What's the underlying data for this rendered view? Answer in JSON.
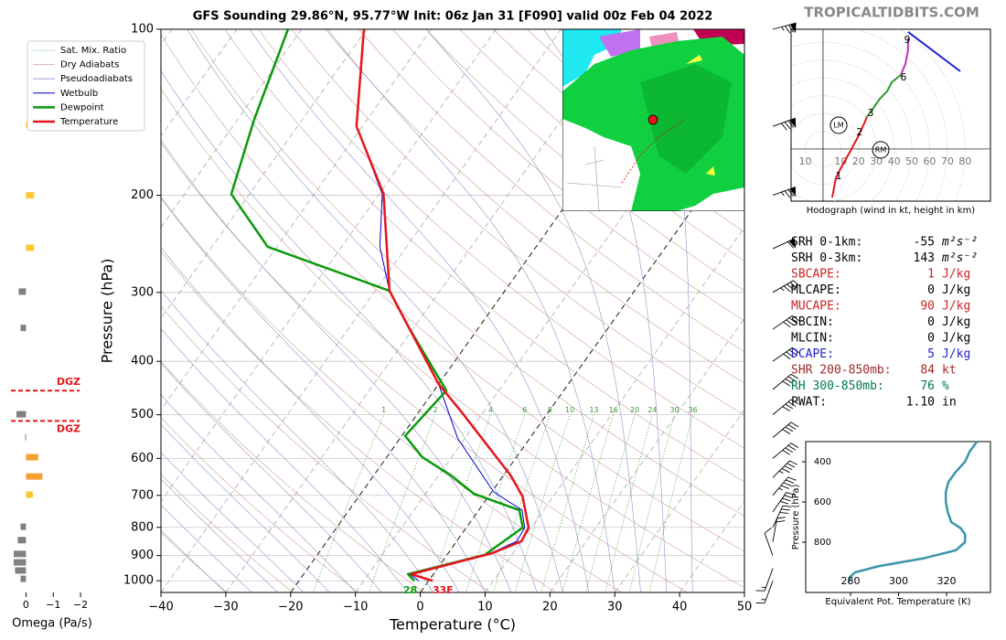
{
  "brand": "TROPICALTIDBITS.COM",
  "chart_data": [
    {
      "type": "skewt",
      "title": "GFS Sounding 29.86°N, 95.77°W Init: 06z Jan 31 [F090] valid 00z Feb 04 2022",
      "xlabel": "Temperature (°C)",
      "ylabel": "Pressure (hPa)",
      "xlim": [
        -40,
        50
      ],
      "ylim": [
        1050,
        100
      ],
      "log_y": true,
      "grid": true,
      "xticks": [
        {
          "value": -40,
          "label": "−40"
        },
        {
          "value": -30,
          "label": "−30"
        },
        {
          "value": -20,
          "label": "−20"
        },
        {
          "value": -10,
          "label": "−10"
        },
        0,
        10,
        20,
        30,
        40,
        50
      ],
      "yticks": [
        100,
        200,
        300,
        400,
        500,
        600,
        700,
        800,
        900,
        1000
      ],
      "reference_lines": [
        {
          "name": "Sat. Mix. Ratio",
          "color": "#3a9a3a"
        },
        {
          "name": "Dry Adiabats",
          "color": "#d49a9a"
        },
        {
          "name": "Pseudoadiabats",
          "color": "#9090d0"
        }
      ],
      "mixing_ratios": [
        1,
        2,
        4,
        6,
        8,
        10,
        13,
        16,
        20,
        24,
        30,
        36
      ],
      "highlight_isotherms": [
        0,
        -20
      ],
      "series": [
        {
          "name": "Wetbulb",
          "color": "#0000d0",
          "pressure": [
            1000,
            973,
            898,
            848,
            801,
            745,
            690,
            552,
            440,
            298,
            248,
            199,
            150,
            100
          ],
          "values": [
            -1.5,
            -3.6,
            6.2,
            9.3,
            9.0,
            6.7,
            0.3,
            -11.1,
            -20.0,
            -37.8,
            -44.1,
            -49.5,
            -60.9,
            -70.4
          ]
        },
        {
          "name": "Dewpoint",
          "color": "#0a9a0a",
          "surface_label": "28",
          "pressure": [
            1000,
            973,
            898,
            801,
            745,
            695,
            644,
            597,
            546,
            452,
            348,
            298,
            248,
            199,
            146,
            100
          ],
          "values": [
            -2.2,
            -3.9,
            5.8,
            8.7,
            6.3,
            -2.6,
            -8.1,
            -14.5,
            -19.5,
            -18.1,
            -30.7,
            -37.8,
            -61.4,
            -72.8,
            -77.4,
            -82.1
          ]
        },
        {
          "name": "Temperature",
          "color": "#e8141b",
          "surface_label": "33F",
          "pressure": [
            1000,
            973,
            891,
            848,
            801,
            704,
            644,
            497,
            440,
            298,
            199,
            150,
            100
          ],
          "values": [
            0.6,
            -3.4,
            6.8,
            10.0,
            9.6,
            5.3,
            1.1,
            -13.1,
            -20.0,
            -37.8,
            -49.3,
            -60.9,
            -70.4
          ]
        }
      ],
      "winds": {
        "pressure": [
          100,
          150,
          200,
          250,
          300,
          350,
          400,
          450,
          500,
          550,
          600,
          650,
          700,
          750,
          800,
          850,
          900,
          950,
          1000
        ],
        "direction": [
          255,
          250,
          250,
          245,
          240,
          235,
          235,
          230,
          230,
          230,
          230,
          225,
          220,
          215,
          205,
          190,
          160,
          20,
          20
        ],
        "speed": [
          75,
          80,
          75,
          60,
          45,
          40,
          40,
          40,
          40,
          40,
          40,
          45,
          45,
          40,
          30,
          20,
          10,
          15,
          15
        ]
      }
    },
    {
      "type": "bar",
      "orientation": "horizontal",
      "xlabel": "Omega (Pa/s)",
      "xlim": [
        0.55,
        -2.3
      ],
      "ylim": [
        1050,
        100
      ],
      "log_y": true,
      "xticks": [
        0,
        {
          "value": -1,
          "label": "−1"
        },
        {
          "value": -2,
          "label": "−2"
        }
      ],
      "pressure": [
        149,
        200,
        249,
        299,
        348,
        499,
        549,
        597,
        647,
        698,
        798,
        844,
        894,
        926,
        958,
        992
      ],
      "values": [
        -0.05,
        -0.3,
        -0.3,
        0.27,
        0.2,
        0.35,
        0.03,
        -0.45,
        -0.6,
        -0.25,
        0.2,
        0.3,
        0.45,
        0.45,
        0.4,
        0.2
      ],
      "colors": [
        "#ffc830",
        "#ffc830",
        "#ffc830",
        "#808080",
        "#808080",
        "#808080",
        "#808080",
        "#f5a030",
        "#f5a030",
        "#ffc830",
        "#808080",
        "#808080",
        "#808080",
        "#808080",
        "#808080",
        "#808080"
      ],
      "dgz": {
        "labels": [
          "DGZ",
          "DGZ"
        ],
        "pressure": [
          452,
          513
        ],
        "color": "#e8141b"
      }
    },
    {
      "type": "hodograph",
      "caption": "Hodograph (wind in kt, height in km)",
      "xlim": [
        -18,
        94.3
      ],
      "ylim": [
        -29.4,
        67.5
      ],
      "xticks": [
        {
          "value": -10,
          "label": "10"
        },
        10,
        20,
        30,
        40,
        50,
        60,
        70,
        80
      ],
      "series": [
        {
          "color": "#e8141b",
          "u": [
            5.2,
            6.2,
            7.2,
            10.3,
            15.5,
            19.6,
            23.2,
            24.7
          ],
          "v": [
            -27.3,
            -21.6,
            -16.5,
            -10.3,
            -1.0,
            6.7,
            14.4,
            18.0
          ]
        },
        {
          "color": "#2a9a2a",
          "u": [
            24.7,
            28.4,
            32.0,
            36.1,
            38.7,
            43.8
          ],
          "v": [
            18.0,
            23.2,
            28.4,
            32.5,
            37.6,
            41.8
          ]
        },
        {
          "color": "#c030c0",
          "u": [
            43.8,
            46.4,
            47.9,
            47.9
          ],
          "v": [
            41.8,
            47.9,
            55.7,
            62.4
          ]
        },
        {
          "color": "#2020e0",
          "u": [
            47.9,
            77.3
          ],
          "v": [
            66.0,
            43.8
          ]
        }
      ],
      "height_labels": {
        "labels": [
          1,
          2,
          3,
          6,
          9
        ],
        "u": [
          8.8,
          20.6,
          26.8,
          45.3,
          47.4
        ],
        "v": [
          -15.5,
          9.3,
          20.1,
          40.2,
          61.3
        ]
      },
      "storm_motion": {
        "labels": [
          "LM",
          "RM"
        ],
        "u": [
          8.8,
          32.5
        ],
        "v": [
          13.4,
          -0.5
        ]
      }
    },
    {
      "type": "line",
      "xlabel": "Equivalent Pot. Temperature (K)",
      "ylabel": "Pressure (hPa)",
      "xlim": [
        261.3,
        338.3
      ],
      "ylim": [
        1050,
        300
      ],
      "xticks": [
        280,
        300,
        320
      ],
      "yticks": [
        400,
        600,
        800
      ],
      "color": "#3a96a8",
      "pressure": [
        300,
        350,
        400,
        450,
        500,
        550,
        600,
        650,
        700,
        730,
        760,
        800,
        840,
        880,
        920,
        950,
        975,
        1000
      ],
      "values": [
        332.7,
        329.6,
        327.7,
        323.9,
        320.8,
        319.7,
        319.7,
        320.5,
        322.0,
        325.8,
        327.7,
        327.7,
        323.9,
        310.5,
        291.5,
        281.9,
        279.6,
        279.2
      ]
    }
  ],
  "parameters": [
    {
      "label": "SRH 0-1km:",
      "value": -55,
      "unit": "m²s⁻²",
      "color": "#000000"
    },
    {
      "label": "SRH 0-3km:",
      "value": 143,
      "unit": "m²s⁻²",
      "color": "#000000"
    },
    {
      "label": "SBCAPE:",
      "value": 1,
      "unit": "J/kg",
      "color": "#cc2222"
    },
    {
      "label": "MLCAPE:",
      "value": 0,
      "unit": "J/kg",
      "color": "#000000"
    },
    {
      "label": "MUCAPE:",
      "value": 90,
      "unit": "J/kg",
      "color": "#cc2222"
    },
    {
      "label": "SBCIN:",
      "value": 0,
      "unit": "J/kg",
      "color": "#000000"
    },
    {
      "label": "MLCIN:",
      "value": 0,
      "unit": "J/kg",
      "color": "#000000"
    },
    {
      "label": "DCAPE:",
      "value": 5,
      "unit": "J/kg",
      "color": "#2222cc"
    },
    {
      "label": "SHR 200-850mb:",
      "value": 84,
      "unit": "kt",
      "color": "#a02828"
    },
    {
      "label": "RH 300-850mb:",
      "value": 76,
      "unit": "%",
      "color": "#007a4a"
    },
    {
      "label": "PWAT:",
      "value": "1.10",
      "unit": "in",
      "color": "#000000"
    }
  ]
}
